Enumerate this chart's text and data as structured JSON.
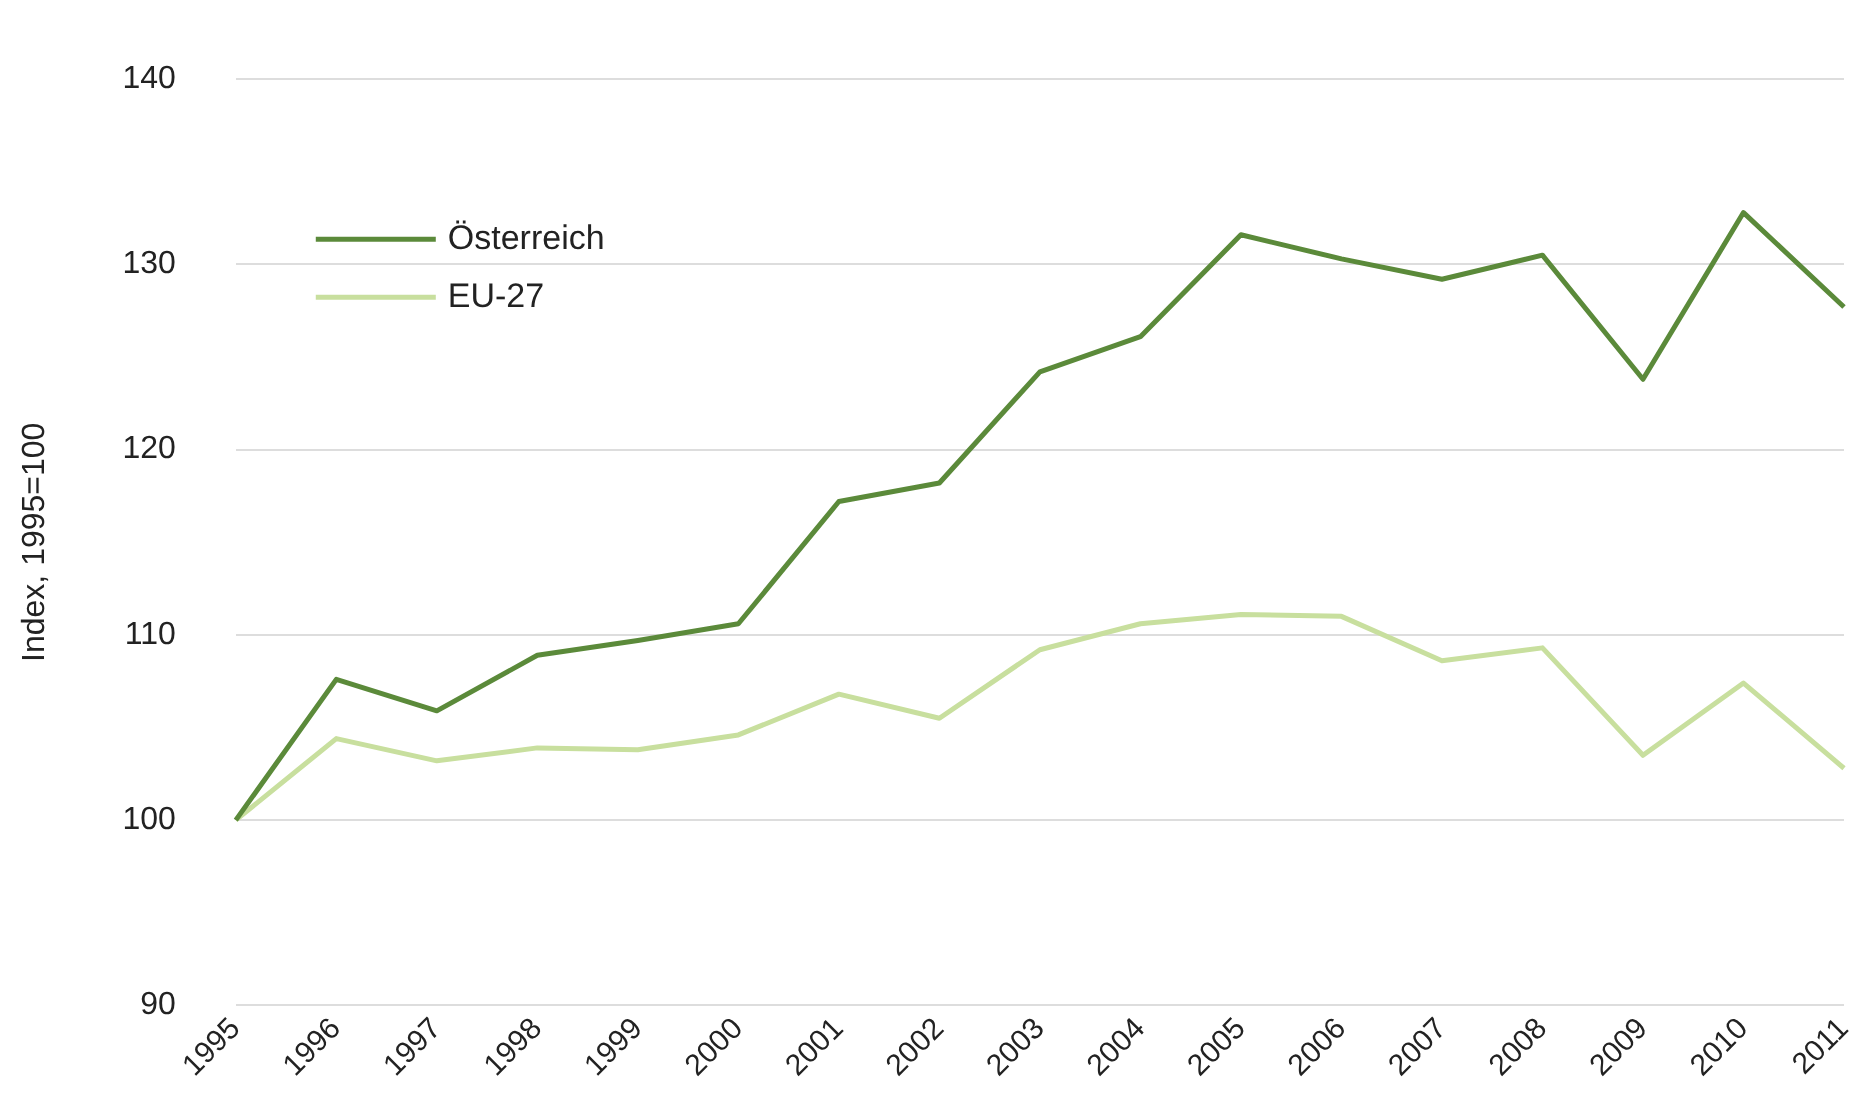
{
  "chart_data": {
    "type": "line",
    "ylabel": "Index, 1995=100",
    "categories": [
      "1995",
      "1996",
      "1997",
      "1998",
      "1999",
      "2000",
      "2001",
      "2002",
      "2003",
      "2004",
      "2005",
      "2006",
      "2007",
      "2008",
      "2009",
      "2010",
      "2011"
    ],
    "series": [
      {
        "name": "Österreich",
        "color": "#5b8a3a",
        "values": [
          100,
          107.6,
          105.9,
          108.9,
          109.7,
          110.6,
          117.2,
          118.2,
          124.2,
          126.1,
          131.6,
          130.3,
          129.2,
          130.5,
          123.8,
          132.8,
          127.7
        ]
      },
      {
        "name": "EU-27",
        "color": "#c8df9e",
        "values": [
          100,
          104.4,
          103.2,
          103.9,
          103.8,
          104.6,
          106.8,
          105.5,
          109.2,
          110.6,
          111.1,
          111.0,
          108.6,
          109.3,
          103.5,
          107.4,
          102.8
        ]
      }
    ],
    "ylim": [
      90,
      140
    ],
    "yticks": [
      90,
      100,
      110,
      120,
      130,
      140
    ],
    "grid": "y",
    "legend": "top left",
    "marker": "none",
    "line_style": "solid"
  }
}
